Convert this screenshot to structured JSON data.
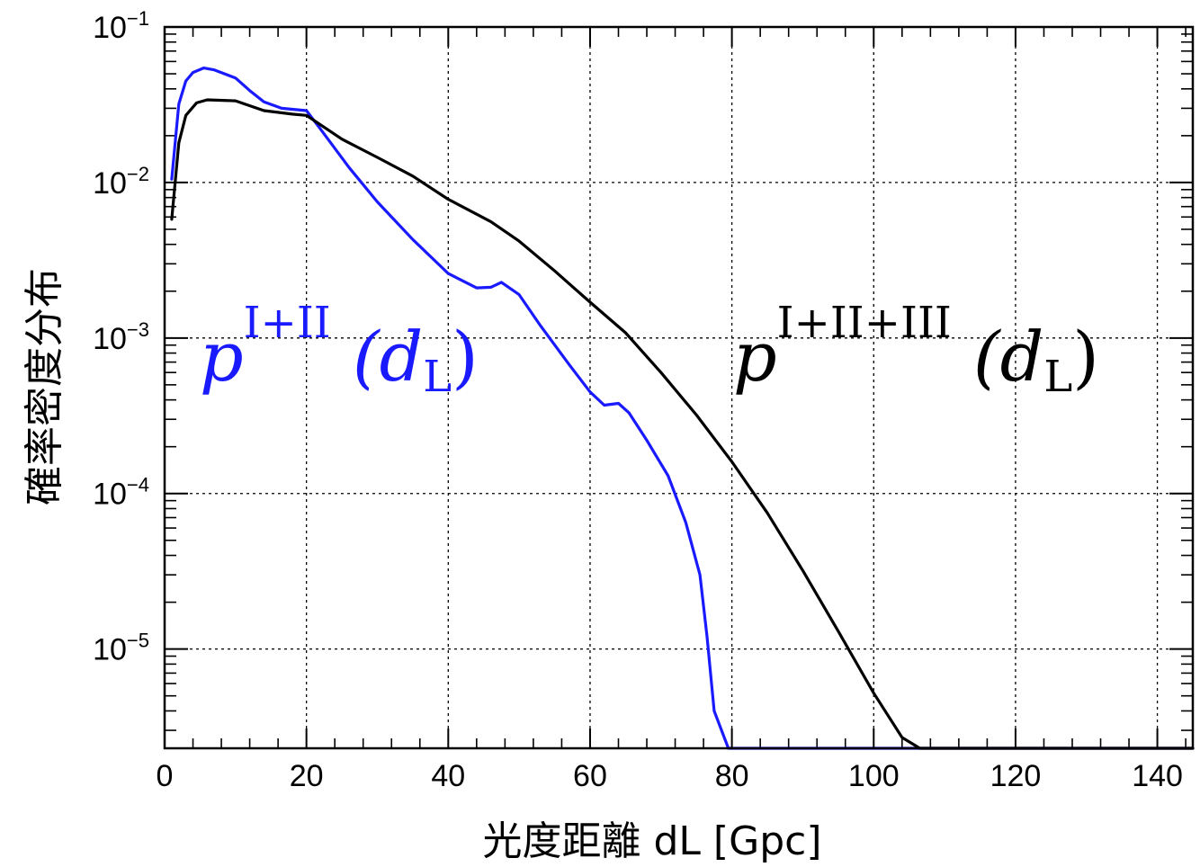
{
  "chart_data": {
    "type": "line",
    "xlabel": "光度距離 dL [Gpc]",
    "ylabel": "確率密度分布",
    "xlim": [
      0,
      145
    ],
    "ylim": [
      2.3e-06,
      0.1
    ],
    "yscale": "log",
    "grid": true,
    "x_ticks": [
      "0",
      "20",
      "40",
      "60",
      "80",
      "100",
      "120",
      "140"
    ],
    "y_ticks": [
      {
        "value": 0.1,
        "base": "10",
        "exp": "−1"
      },
      {
        "value": 0.01,
        "base": "10",
        "exp": "−2"
      },
      {
        "value": 0.001,
        "base": "10",
        "exp": "−3"
      },
      {
        "value": 0.0001,
        "base": "10",
        "exp": "−4"
      },
      {
        "value": 1e-05,
        "base": "10",
        "exp": "−5"
      }
    ],
    "series": [
      {
        "name": "p^{I+II}(d_L)",
        "label": {
          "p": "p",
          "sup": "I+II",
          "arg": "(d",
          "sub": "L",
          "close": ")"
        },
        "color": "#1a1aff",
        "points": [
          [
            1.0,
            0.0105
          ],
          [
            2.0,
            0.032
          ],
          [
            3.0,
            0.045
          ],
          [
            4.0,
            0.051
          ],
          [
            5.5,
            0.0545
          ],
          [
            7.0,
            0.053
          ],
          [
            10.0,
            0.047
          ],
          [
            12.0,
            0.039
          ],
          [
            14.0,
            0.033
          ],
          [
            16.5,
            0.03
          ],
          [
            20.0,
            0.029
          ],
          [
            22.0,
            0.022
          ],
          [
            26.0,
            0.0125
          ],
          [
            30.0,
            0.0075
          ],
          [
            35.0,
            0.0043
          ],
          [
            40.0,
            0.0026
          ],
          [
            44.0,
            0.0021
          ],
          [
            46.0,
            0.00212
          ],
          [
            47.5,
            0.00228
          ],
          [
            50.0,
            0.0019
          ],
          [
            53.0,
            0.0012
          ],
          [
            57.0,
            0.00068
          ],
          [
            60.0,
            0.00045
          ],
          [
            62.0,
            0.00037
          ],
          [
            64.0,
            0.00038
          ],
          [
            65.5,
            0.00033
          ],
          [
            68.0,
            0.00022
          ],
          [
            71.0,
            0.00013
          ],
          [
            73.5,
            6.5e-05
          ],
          [
            75.5,
            3e-05
          ],
          [
            76.5,
            1.2e-05
          ],
          [
            77.5,
            4e-06
          ],
          [
            79.5,
            2.3e-06
          ],
          [
            145,
            2.3e-06
          ]
        ]
      },
      {
        "name": "p^{I+II+III}(d_L)",
        "label": {
          "p": "p",
          "sup": "I+II+III",
          "arg": "(d",
          "sub": "L",
          "close": ")"
        },
        "color": "#000000",
        "points": [
          [
            1.0,
            0.0058
          ],
          [
            2.0,
            0.018
          ],
          [
            3.0,
            0.027
          ],
          [
            4.5,
            0.0325
          ],
          [
            6.0,
            0.034
          ],
          [
            10.0,
            0.0335
          ],
          [
            14.0,
            0.029
          ],
          [
            18.0,
            0.0275
          ],
          [
            20.0,
            0.027
          ],
          [
            25.0,
            0.019
          ],
          [
            30.0,
            0.0145
          ],
          [
            35.0,
            0.011
          ],
          [
            40.0,
            0.0078
          ],
          [
            46.0,
            0.0056
          ],
          [
            50.0,
            0.0042
          ],
          [
            55.0,
            0.0027
          ],
          [
            60.0,
            0.0017
          ],
          [
            65.0,
            0.00108
          ],
          [
            70.0,
            0.0006
          ],
          [
            75.0,
            0.00032
          ],
          [
            80.0,
            0.00016
          ],
          [
            85.0,
            7.5e-05
          ],
          [
            90.0,
            3.2e-05
          ],
          [
            95.0,
            1.3e-05
          ],
          [
            100.0,
            5.2e-06
          ],
          [
            104.0,
            2.7e-06
          ],
          [
            106.5,
            2.3e-06
          ],
          [
            145,
            2.3e-06
          ]
        ]
      }
    ]
  }
}
